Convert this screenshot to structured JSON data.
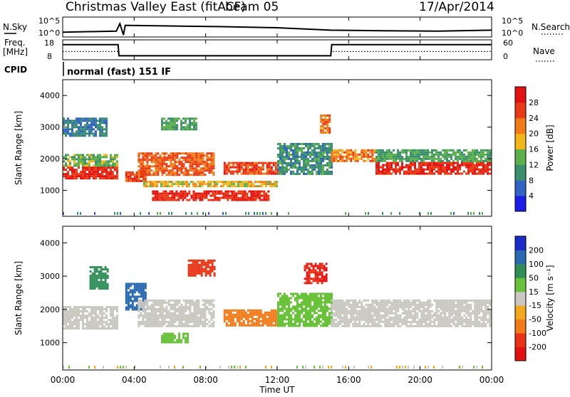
{
  "header": {
    "station": "Christmas Valley East (fitACF)",
    "beam": "beam 05",
    "date": "17/Apr/2014"
  },
  "noise_panel": {
    "left_label": "N.Sky",
    "right_label": "N.Search",
    "left_ticks": [
      "10^5",
      "10^0"
    ],
    "right_ticks": [
      "10^5",
      "10^0"
    ]
  },
  "freq_panel": {
    "left_label_line1": "Freq.",
    "left_label_line2": "[MHz]",
    "right_label": "Nave",
    "left_ticks": [
      "18",
      "8"
    ],
    "right_ticks": [
      "60",
      "0"
    ],
    "freq_mhz": {
      "x": [
        0,
        3.1,
        3.15,
        15.0,
        15.05,
        24
      ],
      "y": [
        16,
        16,
        9.5,
        9.5,
        16,
        16
      ]
    },
    "nave": {
      "x": [
        0,
        3.1,
        3.15,
        15.0,
        15.05,
        24
      ],
      "y": [
        24,
        24,
        10,
        10,
        24,
        24
      ]
    }
  },
  "cpid": {
    "label": "CPID",
    "program": "normal (fast) 151 IF"
  },
  "power_panel": {
    "ylabel": "Slant Range [km]",
    "yticks": [
      "1000",
      "2000",
      "3000",
      "4000"
    ],
    "colorbar_label": "Power [dB]",
    "colorbar_ticks": [
      "4",
      "8",
      "12",
      "16",
      "20",
      "24",
      "28"
    ],
    "colorbar_colors": [
      "#1c1ce8",
      "#2f64c4",
      "#3a8f6e",
      "#5bb04c",
      "#f2b51a",
      "#f07c18",
      "#e83a14",
      "#e21212"
    ]
  },
  "velocity_panel": {
    "ylabel": "Slant Range [km]",
    "yticks": [
      "1000",
      "2000",
      "3000",
      "4000"
    ],
    "colorbar_label": "Velocity [m s⁻¹]",
    "colorbar_ticks": [
      "200",
      "100",
      "50",
      "15",
      "-15",
      "-50",
      "-100",
      "-200"
    ],
    "colorbar_colors": [
      "#1c2cc8",
      "#2a6ab0",
      "#2f8f56",
      "#68c23a",
      "#c8c8c0",
      "#f2a81a",
      "#f27a18",
      "#e83414",
      "#e21212"
    ]
  },
  "time_axis": {
    "label": "Time UT",
    "ticks": [
      "00:00",
      "04:00",
      "08:00",
      "12:00",
      "16:00",
      "20:00",
      "00:00"
    ]
  },
  "chart_data": [
    {
      "type": "line",
      "title": "N.Sky / N.Search",
      "xlim": [
        0,
        24
      ],
      "x": [
        0,
        3,
        3.2,
        3.4,
        3.5,
        6,
        9,
        12,
        15,
        18,
        21,
        24
      ],
      "series": [
        {
          "name": "N.Sky",
          "values": [
            1.0,
            1.3,
            3.5,
            0.2,
            3.0,
            2.8,
            2.6,
            2.3,
            1.6,
            1.4,
            1.3,
            1.6
          ]
        }
      ]
    },
    {
      "type": "line",
      "title": "Freq. / Nave",
      "xlim": [
        0,
        24
      ],
      "x": [
        0,
        3.1,
        3.15,
        15.0,
        15.05,
        24
      ],
      "series": [
        {
          "name": "Freq.",
          "values": [
            16,
            16,
            9.5,
            9.5,
            16,
            16
          ]
        },
        {
          "name": "Nave",
          "values": [
            24,
            24,
            10,
            10,
            24,
            24
          ]
        }
      ]
    },
    {
      "type": "heatmap",
      "title": "Power [dB]",
      "xlim": [
        0,
        24
      ],
      "ylim": [
        180,
        4500
      ],
      "blobs": [
        {
          "t0": 0.0,
          "t1": 3.0,
          "r0": 1400,
          "r1": 1750,
          "v": 28
        },
        {
          "t0": 0.0,
          "t1": 3.0,
          "r0": 1750,
          "r1": 2150,
          "v": 14
        },
        {
          "t0": 0.0,
          "t1": 2.5,
          "r0": 2700,
          "r1": 3300,
          "v": 8
        },
        {
          "t0": 3.5,
          "t1": 4.6,
          "r0": 1300,
          "r1": 1600,
          "v": 26
        },
        {
          "t0": 4.2,
          "t1": 8.5,
          "r0": 1500,
          "r1": 2200,
          "v": 24
        },
        {
          "t0": 5.5,
          "t1": 7.5,
          "r0": 2900,
          "r1": 3300,
          "v": 12
        },
        {
          "t0": 4.5,
          "t1": 12.0,
          "r0": 1100,
          "r1": 1300,
          "v": 18
        },
        {
          "t0": 5.0,
          "t1": 11.5,
          "r0": 700,
          "r1": 1000,
          "v": 28
        },
        {
          "t0": 9.0,
          "t1": 12.0,
          "r0": 1500,
          "r1": 1900,
          "v": 26
        },
        {
          "t0": 12.0,
          "t1": 15.0,
          "r0": 1500,
          "r1": 2500,
          "v": 10
        },
        {
          "t0": 14.4,
          "t1": 14.9,
          "r0": 2800,
          "r1": 3400,
          "v": 22
        },
        {
          "t0": 15.0,
          "t1": 17.5,
          "r0": 1900,
          "r1": 2300,
          "v": 22
        },
        {
          "t0": 17.5,
          "t1": 24.0,
          "r0": 1500,
          "r1": 1900,
          "v": 28
        },
        {
          "t0": 17.5,
          "t1": 24.0,
          "r0": 1900,
          "r1": 2300,
          "v": 12
        }
      ]
    },
    {
      "type": "heatmap",
      "title": "Velocity [m s⁻¹]",
      "xlim": [
        0,
        24
      ],
      "ylim": [
        180,
        4500
      ],
      "blobs": [
        {
          "t0": 0.0,
          "t1": 3.0,
          "r0": 1400,
          "r1": 2100,
          "v": -10
        },
        {
          "t0": 1.5,
          "t1": 2.5,
          "r0": 2600,
          "r1": 3300,
          "v": 60
        },
        {
          "t0": 3.5,
          "t1": 4.6,
          "r0": 2000,
          "r1": 2800,
          "v": 150
        },
        {
          "t0": 4.2,
          "t1": 8.5,
          "r0": 1500,
          "r1": 2300,
          "v": -5
        },
        {
          "t0": 5.5,
          "t1": 7.0,
          "r0": 1000,
          "r1": 1300,
          "v": 40
        },
        {
          "t0": 7.0,
          "t1": 8.5,
          "r0": 3000,
          "r1": 3500,
          "v": -180
        },
        {
          "t0": 9.0,
          "t1": 12.0,
          "r0": 1500,
          "r1": 2000,
          "v": -60
        },
        {
          "t0": 12.0,
          "t1": 15.0,
          "r0": 1500,
          "r1": 2500,
          "v": 30
        },
        {
          "t0": 13.5,
          "t1": 14.8,
          "r0": 2800,
          "r1": 3400,
          "v": -200
        },
        {
          "t0": 15.0,
          "t1": 24.0,
          "r0": 1500,
          "r1": 2300,
          "v": 0
        }
      ]
    }
  ]
}
